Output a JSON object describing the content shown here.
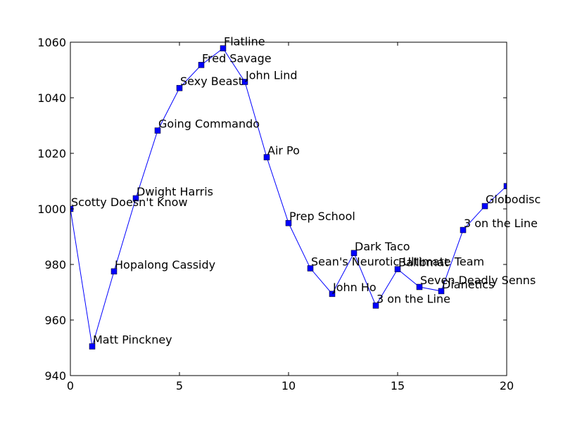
{
  "chart_data": {
    "type": "line",
    "title": "",
    "xlabel": "",
    "ylabel": "",
    "xlim": [
      0,
      20
    ],
    "ylim": [
      940,
      1060
    ],
    "xticks": [
      0,
      5,
      10,
      15,
      20
    ],
    "yticks": [
      940,
      960,
      980,
      1000,
      1020,
      1040,
      1060
    ],
    "grid": false,
    "series": [
      {
        "color": "#0000ff",
        "marker": "square",
        "x": [
          0,
          1,
          2,
          3,
          4,
          5,
          6,
          7,
          8,
          9,
          10,
          11,
          12,
          13,
          14,
          15,
          16,
          17,
          18,
          19,
          20
        ],
        "values": [
          1000,
          950.5,
          977.5,
          1003.8,
          1028.2,
          1043.5,
          1051.8,
          1057.8,
          1045.7,
          1018.6,
          994.9,
          978.6,
          969.4,
          984.1,
          965.2,
          978.3,
          971.9,
          970.4,
          992.4,
          1001,
          1008.2
        ],
        "labels": [
          "Scotty Doesn't Know",
          "Matt Pinckney",
          "Hopalong Cassidy",
          "Dwight Harris",
          "Going Commando",
          "Sexy Beast",
          "Fred Savage",
          "Flatline",
          "John Lind",
          "Air Po",
          "Prep School",
          "Sean's Neurotic Ultimate Team",
          "John Ho",
          "Dark Taco",
          "3 on the Line",
          "Ballbmat",
          "Seven Deadly Senns",
          "Dianetics",
          "3 on the Line",
          "Globodisc",
          ""
        ]
      }
    ]
  }
}
